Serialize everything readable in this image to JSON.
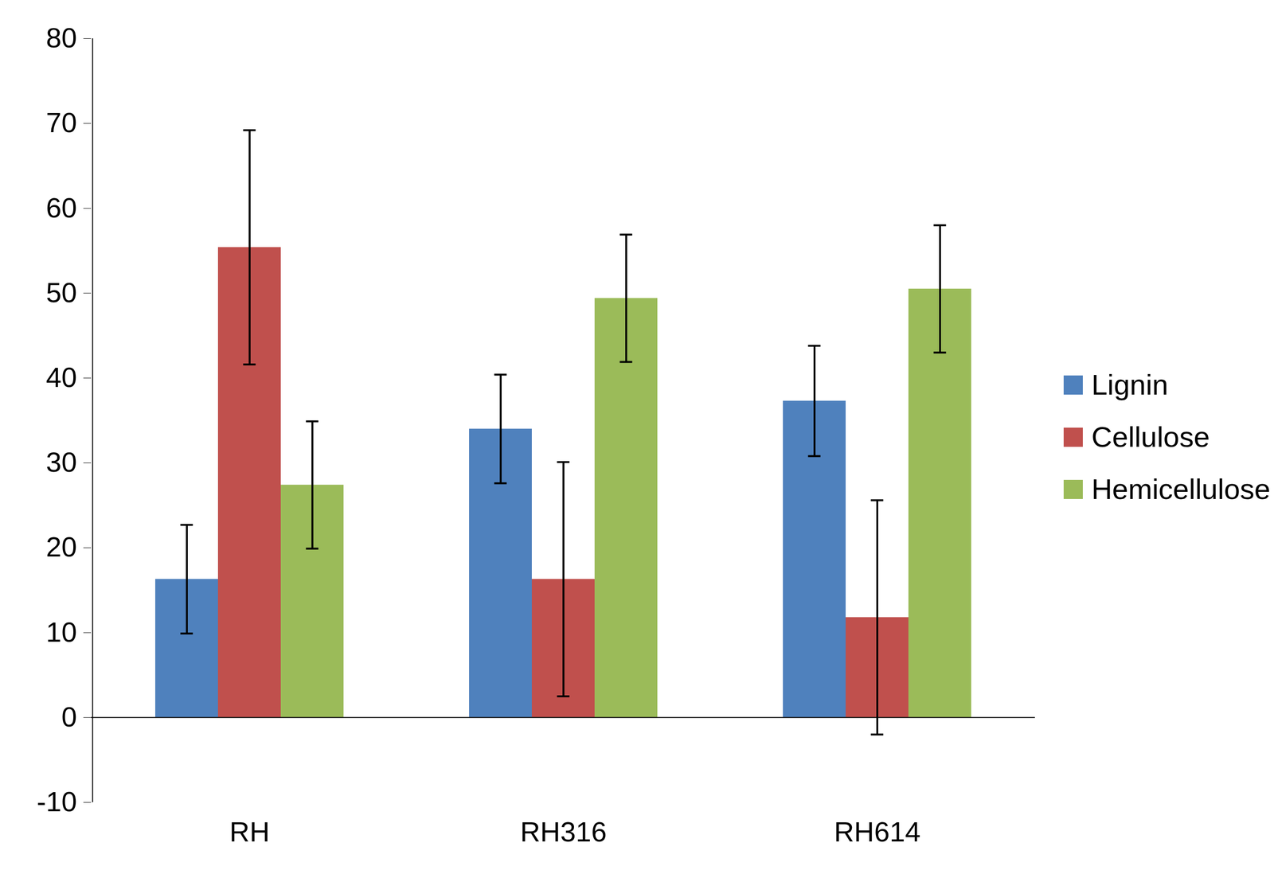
{
  "chart_data": {
    "type": "bar",
    "categories": [
      "RH",
      "RH316",
      "RH614"
    ],
    "series": [
      {
        "name": "Lignin",
        "color": "#4f81bd",
        "values": [
          16.3,
          34.0,
          37.3
        ],
        "error": [
          6.4,
          6.4,
          6.5
        ]
      },
      {
        "name": "Cellulose",
        "color": "#c0504d",
        "values": [
          55.4,
          16.3,
          11.8
        ],
        "error": [
          13.8,
          13.8,
          13.8
        ]
      },
      {
        "name": "Hemicellulose",
        "color": "#9bbb59",
        "values": [
          27.4,
          49.4,
          50.5
        ],
        "error": [
          7.5,
          7.5,
          7.5
        ]
      }
    ],
    "ylim": [
      -10,
      80
    ],
    "yticks": [
      -10,
      0,
      10,
      20,
      30,
      40,
      50,
      60,
      70,
      80
    ],
    "grid": false,
    "legend": "right"
  }
}
